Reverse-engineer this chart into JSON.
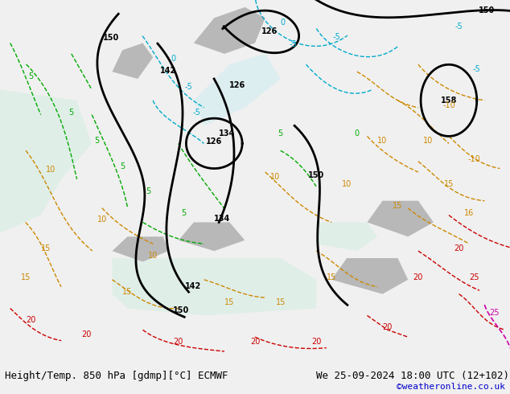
{
  "title_left": "Height/Temp. 850 hPa [gdmp][°C] ECMWF",
  "title_right": "We 25-09-2024 18:00 UTC (12+102)",
  "credit": "©weatheronline.co.uk",
  "fig_width": 6.34,
  "fig_height": 4.9,
  "dpi": 100,
  "bg_color": "#f0f0f0",
  "map_bg_light_green": "#c8e6a0",
  "map_bg_gray": "#b0b0b0",
  "map_bg_white": "#e8e8e8",
  "contour_height_color": "#000000",
  "contour_temp_positive_color": "#cc8800",
  "contour_temp_negative_color": "#00aacc",
  "contour_temp_zero_color": "#00aa00",
  "contour_temp_hot_color": "#cc0000",
  "contour_temp_pink_color": "#cc00aa",
  "bottom_bar_color": "#d8d8d8",
  "title_fontsize": 9,
  "credit_fontsize": 8,
  "credit_color": "#0000cc"
}
